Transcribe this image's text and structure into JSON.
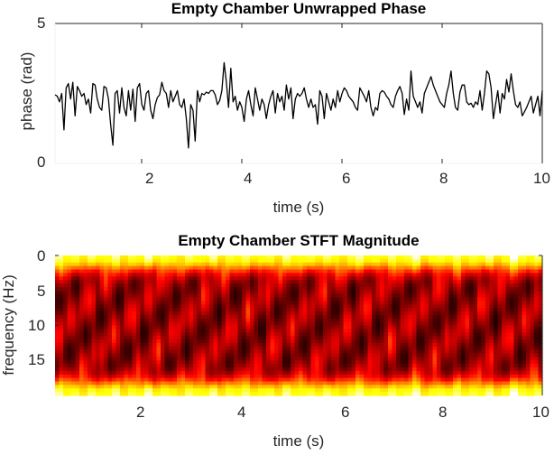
{
  "chart_data": [
    {
      "type": "line",
      "title": "Empty Chamber Unwrapped Phase",
      "xlabel": "time (s)",
      "ylabel": "phase (rad)",
      "xlim": [
        0.27,
        10
      ],
      "ylim": [
        0,
        5
      ],
      "xticks": [
        2,
        4,
        6,
        8,
        10
      ],
      "yticks": [
        0,
        5
      ],
      "grid": false,
      "line_color": "#000000",
      "x_start": 0.27,
      "x_end": 10,
      "values": [
        2.45,
        2.4,
        2.2,
        2.5,
        1.2,
        2.7,
        2.85,
        2.3,
        2.9,
        1.7,
        2.75,
        2.6,
        2.4,
        2.5,
        2.1,
        2.3,
        1.8,
        2.85,
        2.8,
        2.3,
        2.0,
        1.9,
        2.75,
        2.7,
        2.3,
        1.4,
        0.65,
        2.5,
        2.6,
        1.8,
        2.7,
        2.0,
        1.7,
        2.6,
        1.9,
        2.65,
        1.5,
        2.7,
        2.85,
        2.1,
        1.9,
        2.5,
        2.6,
        1.9,
        1.6,
        2.1,
        2.35,
        2.45,
        2.9,
        2.6,
        2.5,
        2.0,
        2.6,
        2.2,
        2.4,
        2.6,
        2.1,
        2.0,
        2.3,
        1.6,
        0.55,
        2.1,
        1.9,
        0.8,
        2.6,
        2.2,
        2.5,
        2.45,
        2.55,
        2.5,
        2.6,
        2.6,
        2.45,
        2.1,
        2.25,
        2.6,
        3.6,
        2.9,
        2.0,
        3.4,
        2.2,
        2.4,
        1.9,
        2.2,
        2.0,
        1.5,
        2.3,
        2.6,
        2.1,
        1.7,
        2.7,
        2.3,
        1.9,
        2.3,
        2.1,
        1.6,
        2.1,
        2.4,
        2.6,
        1.8,
        2.5,
        2.2,
        2.4,
        1.9,
        2.8,
        2.3,
        2.7,
        1.6,
        2.3,
        2.5,
        2.4,
        2.5,
        2.7,
        2.3,
        2.0,
        2.3,
        2.0,
        2.1,
        1.4,
        2.6,
        2.4,
        1.6,
        2.5,
        2.2,
        1.9,
        2.3,
        2.0,
        2.6,
        2.2,
        2.5,
        2.7,
        2.6,
        2.4,
        2.3,
        2.2,
        2.0,
        1.9,
        2.7,
        2.55,
        2.4,
        2.2,
        2.6,
        2.0,
        1.7,
        2.0,
        1.9,
        2.5,
        2.6,
        2.55,
        2.4,
        2.3,
        2.1,
        2.0,
        2.4,
        2.6,
        2.75,
        2.5,
        1.75,
        2.3,
        1.9,
        3.3,
        2.4,
        2.2,
        2.0,
        2.2,
        1.8,
        2.5,
        2.7,
        2.9,
        3.1,
        2.8,
        2.6,
        2.4,
        2.2,
        2.1,
        2.0,
        2.5,
        2.8,
        3.3,
        2.5,
        2.0,
        1.9,
        2.55,
        2.8,
        2.8,
        2.2,
        2.1,
        2.15,
        2.0,
        2.2,
        2.1,
        2.6,
        1.9,
        2.5,
        3.3,
        3.2,
        2.7,
        1.6,
        2.1,
        2.6,
        1.8,
        2.5,
        2.3,
        3.0,
        2.55,
        3.2,
        2.6,
        2.1,
        2.0,
        2.2,
        1.7,
        1.85,
        2.0,
        2.2,
        2.4,
        1.8,
        2.1,
        2.4,
        1.7,
        2.6
      ]
    },
    {
      "type": "heatmap",
      "title": "Empty Chamber STFT Magnitude",
      "xlabel": "time (s)",
      "ylabel": "frequency (Hz)",
      "xlim": [
        0.27,
        10
      ],
      "ylim": [
        0,
        20
      ],
      "y_reversed": true,
      "xticks": [
        2,
        4,
        6,
        8,
        10
      ],
      "yticks": [
        0,
        5,
        10,
        15
      ],
      "colormap": "hot",
      "colorbar": false,
      "description": "Bright (yellow/orange) bands near 0 Hz and ~19-20 Hz across all time; dark red/black interior between ~3 and ~17 Hz with vertical streak structure.",
      "rows": 20,
      "cols": 60,
      "magnitude_normalized": "procedural: high at edges (0 and 20 Hz), low in center, modulated per time column"
    }
  ],
  "top_chart": {
    "title": "Empty Chamber Unwrapped Phase",
    "xlabel": "time (s)",
    "ylabel": "phase (rad)",
    "ytick_0": "0",
    "ytick_5": "5",
    "xtick_2": "2",
    "xtick_4": "4",
    "xtick_6": "6",
    "xtick_8": "8",
    "xtick_10": "10"
  },
  "bottom_chart": {
    "title": "Empty Chamber STFT Magnitude",
    "xlabel": "time (s)",
    "ylabel": "frequency (Hz)",
    "ytick_0": "0",
    "ytick_5": "5",
    "ytick_10": "10",
    "ytick_15": "15",
    "xtick_2": "2",
    "xtick_4": "4",
    "xtick_6": "6",
    "xtick_8": "8",
    "xtick_10": "10",
    "column_strength": [
      0.9,
      0.7,
      0.8,
      0.6,
      0.85,
      0.7,
      0.75,
      0.9,
      0.6,
      0.8,
      0.7,
      0.95,
      0.65,
      0.8,
      0.7,
      0.6,
      0.85,
      0.75,
      0.7,
      0.9,
      0.6,
      0.8,
      0.7,
      0.85,
      0.65,
      0.75,
      0.8,
      0.6,
      0.9,
      0.7,
      0.75,
      0.8,
      0.65,
      0.85,
      0.7,
      0.6,
      0.8,
      0.9,
      0.7,
      0.75,
      0.65,
      0.85,
      0.7,
      0.8,
      0.95,
      0.6,
      0.75,
      0.8,
      0.7,
      0.85,
      0.65,
      0.8,
      0.7,
      0.9,
      0.6,
      0.75,
      1.0,
      0.8,
      0.7,
      0.85
    ]
  }
}
